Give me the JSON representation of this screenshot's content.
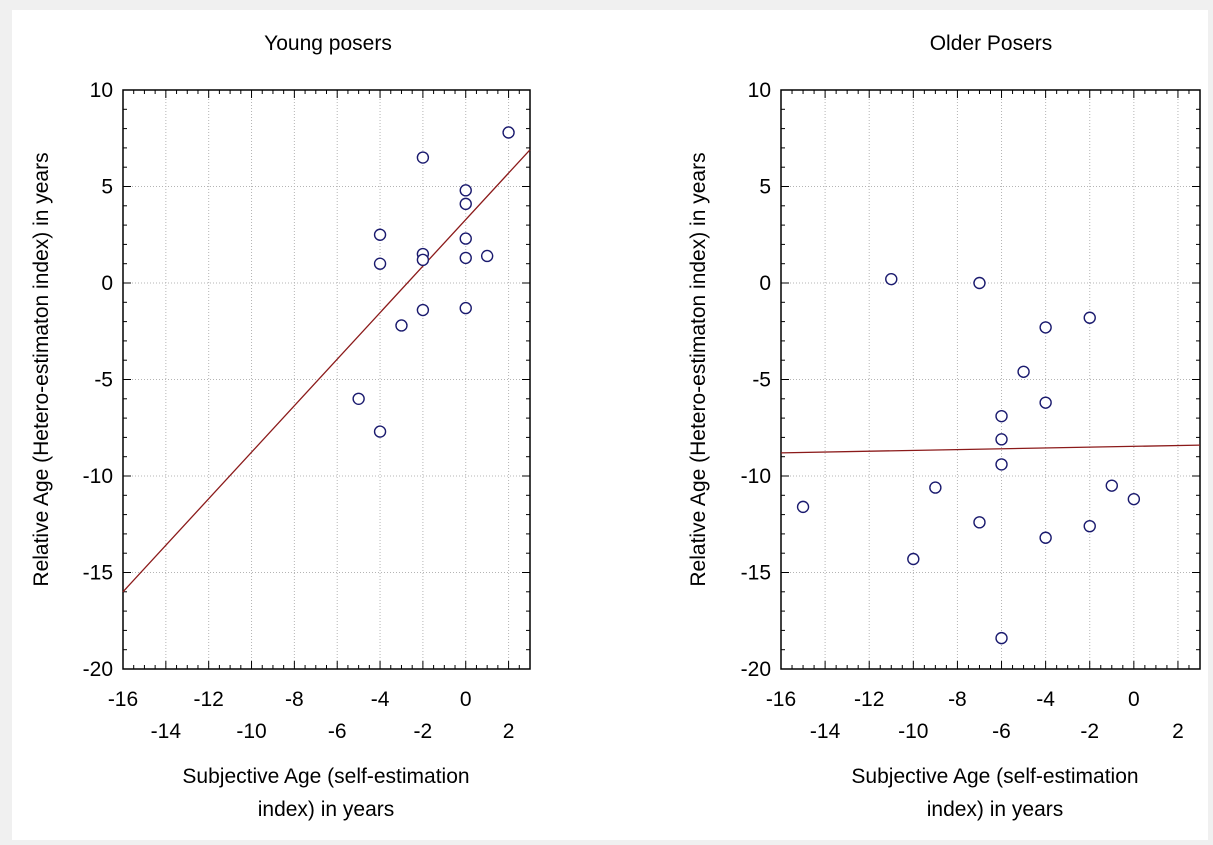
{
  "chart_data": [
    {
      "type": "scatter",
      "title": "Young posers",
      "xlabel": [
        "Subjective Age (self-estimation",
        "index) in years"
      ],
      "ylabel": "Relative Age (Hetero-estimaton index) in years",
      "xlim": [
        -16,
        3
      ],
      "ylim": [
        -20,
        10
      ],
      "xticks_upper": [
        -16,
        -12,
        -8,
        -4,
        0
      ],
      "xticks_lower": [
        -14,
        -10,
        -6,
        -2,
        2
      ],
      "yticks": [
        10,
        5,
        0,
        -5,
        -10,
        -15,
        -20
      ],
      "grid": true,
      "points": [
        {
          "x": -5,
          "y": -6
        },
        {
          "x": -4,
          "y": 2.5
        },
        {
          "x": -4,
          "y": 1
        },
        {
          "x": -4,
          "y": -7.7
        },
        {
          "x": -3,
          "y": -2.2
        },
        {
          "x": -2,
          "y": 6.5
        },
        {
          "x": -2,
          "y": 1.5
        },
        {
          "x": -2,
          "y": 1.2
        },
        {
          "x": -2,
          "y": -1.4
        },
        {
          "x": 0,
          "y": 4.8
        },
        {
          "x": 0,
          "y": 4.1
        },
        {
          "x": 0,
          "y": 2.3
        },
        {
          "x": 0,
          "y": 1.3
        },
        {
          "x": 0,
          "y": -1.3
        },
        {
          "x": 1,
          "y": 1.4
        },
        {
          "x": 2,
          "y": 7.8
        }
      ],
      "fit_line": {
        "x": [
          -16,
          3
        ],
        "y": [
          -16,
          6.9
        ]
      },
      "colors": {
        "points": "#1a1a6e",
        "fit_line": "#8b1a1a",
        "grid": "#b4b4b4"
      }
    },
    {
      "type": "scatter",
      "title": "Older Posers",
      "xlabel": [
        "Subjective Age (self-estimation",
        "index) in years"
      ],
      "ylabel": "Relative Age (Hetero-estimaton index) in years",
      "xlim": [
        -16,
        3
      ],
      "ylim": [
        -20,
        10
      ],
      "xticks_upper": [
        -16,
        -12,
        -8,
        -4,
        0
      ],
      "xticks_lower": [
        -14,
        -10,
        -6,
        -2,
        2
      ],
      "yticks": [
        10,
        5,
        0,
        -5,
        -10,
        -15,
        -20
      ],
      "grid": true,
      "points": [
        {
          "x": -15,
          "y": -11.6
        },
        {
          "x": -11,
          "y": 0.2
        },
        {
          "x": -10,
          "y": -14.3
        },
        {
          "x": -9,
          "y": -10.6
        },
        {
          "x": -7,
          "y": 0
        },
        {
          "x": -7,
          "y": -12.4
        },
        {
          "x": -6,
          "y": -6.9
        },
        {
          "x": -6,
          "y": -8.1
        },
        {
          "x": -6,
          "y": -9.4
        },
        {
          "x": -6,
          "y": -18.4
        },
        {
          "x": -5,
          "y": -4.6
        },
        {
          "x": -4,
          "y": -2.3
        },
        {
          "x": -4,
          "y": -6.2
        },
        {
          "x": -4,
          "y": -13.2
        },
        {
          "x": -2,
          "y": -1.8
        },
        {
          "x": -2,
          "y": -12.6
        },
        {
          "x": -1,
          "y": -10.5
        },
        {
          "x": 0,
          "y": -11.2
        }
      ],
      "fit_line": {
        "x": [
          -16,
          3
        ],
        "y": [
          -8.8,
          -8.4
        ]
      },
      "colors": {
        "points": "#1a1a6e",
        "fit_line": "#8b1a1a",
        "grid": "#b4b4b4"
      }
    }
  ]
}
